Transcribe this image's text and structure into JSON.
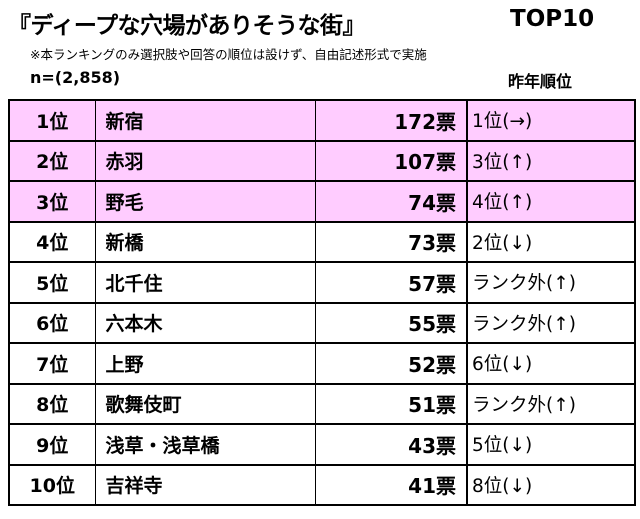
{
  "header": {
    "title": "『ディープな穴場がありそうな街』",
    "badge": "TOP10",
    "note": "※本ランキングのみ選択肢や回答の順位は設けず、自由記述形式で実施",
    "sample": "n=(2,858)",
    "prev_rank_label": "昨年順位"
  },
  "colors": {
    "highlight": "#ffccff"
  },
  "rows": [
    {
      "rank": "1位",
      "name": "新宿",
      "votes": "172票",
      "prev": "1位(→)",
      "highlight": true
    },
    {
      "rank": "2位",
      "name": "赤羽",
      "votes": "107票",
      "prev": "3位(↑)",
      "highlight": true
    },
    {
      "rank": "3位",
      "name": "野毛",
      "votes": "74票",
      "prev": "4位(↑)",
      "highlight": true
    },
    {
      "rank": "4位",
      "name": "新橋",
      "votes": "73票",
      "prev": "2位(↓)",
      "highlight": false
    },
    {
      "rank": "5位",
      "name": "北千住",
      "votes": "57票",
      "prev": "ランク外(↑)",
      "highlight": false
    },
    {
      "rank": "6位",
      "name": "六本木",
      "votes": "55票",
      "prev": "ランク外(↑)",
      "highlight": false
    },
    {
      "rank": "7位",
      "name": "上野",
      "votes": "52票",
      "prev": "6位(↓)",
      "highlight": false
    },
    {
      "rank": "8位",
      "name": "歌舞伎町",
      "votes": "51票",
      "prev": "ランク外(↑)",
      "highlight": false
    },
    {
      "rank": "9位",
      "name": "浅草・浅草橋",
      "votes": "43票",
      "prev": "5位(↓)",
      "highlight": false
    },
    {
      "rank": "10位",
      "name": "吉祥寺",
      "votes": "41票",
      "prev": "8位(↓)",
      "highlight": false
    }
  ]
}
